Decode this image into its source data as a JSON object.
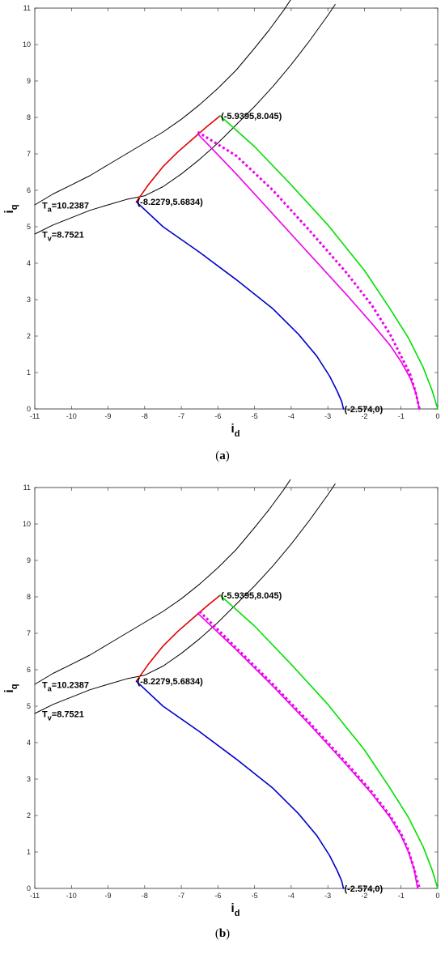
{
  "figures": [
    {
      "caption_open": "(",
      "caption_letter": "a",
      "caption_close": ")",
      "chart_data": {
        "type": "line",
        "xlabel": "i",
        "xlabel_sub": "d",
        "ylabel": "i",
        "ylabel_sub": "q",
        "xlim": [
          -11,
          0
        ],
        "ylim": [
          0,
          11
        ],
        "xticks": [
          -11,
          -10,
          -9,
          -8,
          -7,
          -6,
          -5,
          -4,
          -3,
          -2,
          -1,
          0
        ],
        "yticks": [
          0,
          1,
          2,
          3,
          4,
          5,
          6,
          7,
          8,
          9,
          10,
          11
        ],
        "grid": false,
        "annotations": [
          {
            "text": "(-5.9395,8.045)",
            "x": -5.9395,
            "y": 8.045
          },
          {
            "text": "(-8.2279,5.6834)",
            "x": -8.2279,
            "y": 5.6834
          },
          {
            "text": "(-2.574,0)",
            "x": -2.574,
            "y": 0
          },
          {
            "main": "T",
            "sub": "a",
            "rest": "=10.2387",
            "x": -10.8,
            "y": 5.5
          },
          {
            "main": "T",
            "sub": "v",
            "rest": "=8.7521",
            "x": -10.8,
            "y": 4.7
          }
        ],
        "series": [
          {
            "color": "#000000",
            "style": "solid",
            "x": [
              -11,
              -10.5,
              -10,
              -9.5,
              -9,
              -8.5,
              -8,
              -7.5,
              -7,
              -6.5,
              -6,
              -5.5,
              -5,
              -4.6,
              -4.2,
              -3.9
            ],
            "y": [
              5.6,
              5.9,
              6.15,
              6.4,
              6.7,
              7.0,
              7.3,
              7.6,
              7.95,
              8.35,
              8.8,
              9.3,
              9.9,
              10.4,
              10.95,
              11.4
            ]
          },
          {
            "color": "#000000",
            "style": "solid",
            "x": [
              -11,
              -10.5,
              -10,
              -9.5,
              -9,
              -8.5,
              -8,
              -7.5,
              -7,
              -6.5,
              -6,
              -5.5,
              -5,
              -4.5,
              -4,
              -3.5,
              -3,
              -2.8
            ],
            "y": [
              4.8,
              5.05,
              5.25,
              5.45,
              5.6,
              5.75,
              5.85,
              6.1,
              6.45,
              6.85,
              7.3,
              7.8,
              8.3,
              8.85,
              9.45,
              10.1,
              10.8,
              11.1
            ]
          },
          {
            "color": "#e00000",
            "style": "solid",
            "x": [
              -8.2279,
              -7.9,
              -7.5,
              -7.1,
              -6.7,
              -6.3,
              -5.9395
            ],
            "y": [
              5.6834,
              6.15,
              6.65,
              7.05,
              7.4,
              7.75,
              8.045
            ]
          },
          {
            "color": "#00e000",
            "style": "solid",
            "x": [
              -5.9395,
              -5.0,
              -4.0,
              -3.0,
              -2.0,
              -1.3,
              -0.8,
              -0.4,
              -0.15,
              0
            ],
            "y": [
              8.045,
              7.2,
              6.15,
              5.05,
              3.8,
              2.75,
              1.95,
              1.15,
              0.5,
              0
            ]
          },
          {
            "color": "#0000cc",
            "style": "solid",
            "x": [
              -8.2279,
              -7.5,
              -6.5,
              -5.5,
              -4.5,
              -3.8,
              -3.3,
              -2.95,
              -2.75,
              -2.62,
              -2.574
            ],
            "y": [
              5.6834,
              5.0,
              4.3,
              3.55,
              2.75,
              2.05,
              1.45,
              0.9,
              0.5,
              0.2,
              0
            ]
          },
          {
            "color": "#ee00ee",
            "style": "solid",
            "x": [
              -6.55,
              -5.5,
              -4.5,
              -3.5,
              -2.5,
              -1.8,
              -1.3,
              -1.0,
              -0.75,
              -0.6,
              -0.5
            ],
            "y": [
              7.55,
              6.45,
              5.35,
              4.25,
              3.15,
              2.35,
              1.75,
              1.3,
              0.85,
              0.45,
              0
            ]
          },
          {
            "color": "#ee00ee",
            "style": "dotted",
            "x": [
              -6.55,
              -5.5,
              -4.5,
              -3.5,
              -2.5,
              -1.8,
              -1.3,
              -1.0,
              -0.75,
              -0.6,
              -0.5
            ],
            "y": [
              7.6,
              6.95,
              6.0,
              4.9,
              3.75,
              2.85,
              2.05,
              1.45,
              0.95,
              0.45,
              0
            ]
          }
        ]
      }
    },
    {
      "caption_open": "(",
      "caption_letter": "b",
      "caption_close": ")",
      "chart_data": {
        "type": "line",
        "xlabel": "i",
        "xlabel_sub": "d",
        "ylabel": "i",
        "ylabel_sub": "q",
        "xlim": [
          -11,
          0
        ],
        "ylim": [
          0,
          11
        ],
        "xticks": [
          -11,
          -10,
          -9,
          -8,
          -7,
          -6,
          -5,
          -4,
          -3,
          -2,
          -1,
          0
        ],
        "yticks": [
          0,
          1,
          2,
          3,
          4,
          5,
          6,
          7,
          8,
          9,
          10,
          11
        ],
        "grid": false,
        "annotations": [
          {
            "text": "(-5.9395,8.045)",
            "x": -5.9395,
            "y": 8.045
          },
          {
            "text": "(-8.2279,5.6834)",
            "x": -8.2279,
            "y": 5.6834
          },
          {
            "text": "(-2.574,0)",
            "x": -2.574,
            "y": 0
          },
          {
            "main": "T",
            "sub": "a",
            "rest": "=10.2387",
            "x": -10.8,
            "y": 5.5
          },
          {
            "main": "T",
            "sub": "v",
            "rest": "=8.7521",
            "x": -10.8,
            "y": 4.7
          }
        ],
        "series": [
          {
            "color": "#000000",
            "style": "solid",
            "x": [
              -11,
              -10.5,
              -10,
              -9.5,
              -9,
              -8.5,
              -8,
              -7.5,
              -7,
              -6.5,
              -6,
              -5.5,
              -5,
              -4.6,
              -4.2,
              -3.9
            ],
            "y": [
              5.6,
              5.9,
              6.15,
              6.4,
              6.7,
              7.0,
              7.3,
              7.6,
              7.95,
              8.35,
              8.8,
              9.3,
              9.9,
              10.4,
              10.95,
              11.4
            ]
          },
          {
            "color": "#000000",
            "style": "solid",
            "x": [
              -11,
              -10.5,
              -10,
              -9.5,
              -9,
              -8.5,
              -8,
              -7.5,
              -7,
              -6.5,
              -6,
              -5.5,
              -5,
              -4.5,
              -4,
              -3.5,
              -3,
              -2.8
            ],
            "y": [
              4.8,
              5.05,
              5.25,
              5.45,
              5.6,
              5.75,
              5.85,
              6.1,
              6.45,
              6.85,
              7.3,
              7.8,
              8.3,
              8.85,
              9.45,
              10.1,
              10.8,
              11.1
            ]
          },
          {
            "color": "#e00000",
            "style": "solid",
            "x": [
              -8.2279,
              -7.9,
              -7.5,
              -7.1,
              -6.7,
              -6.3,
              -5.9395
            ],
            "y": [
              5.6834,
              6.15,
              6.65,
              7.05,
              7.4,
              7.75,
              8.045
            ]
          },
          {
            "color": "#00e000",
            "style": "solid",
            "x": [
              -5.9395,
              -5.0,
              -4.0,
              -3.0,
              -2.0,
              -1.3,
              -0.8,
              -0.4,
              -0.15,
              0
            ],
            "y": [
              8.045,
              7.2,
              6.15,
              5.05,
              3.8,
              2.75,
              1.95,
              1.15,
              0.5,
              0
            ]
          },
          {
            "color": "#0000cc",
            "style": "solid",
            "x": [
              -8.2279,
              -7.5,
              -6.5,
              -5.5,
              -4.5,
              -3.8,
              -3.3,
              -2.95,
              -2.75,
              -2.62,
              -2.574
            ],
            "y": [
              5.6834,
              5.0,
              4.3,
              3.55,
              2.75,
              2.05,
              1.45,
              0.9,
              0.5,
              0.2,
              0
            ]
          },
          {
            "color": "#ee00ee",
            "style": "solid",
            "x": [
              -6.55,
              -5.5,
              -4.5,
              -3.5,
              -2.5,
              -1.8,
              -1.3,
              -1.0,
              -0.8,
              -0.65,
              -0.55
            ],
            "y": [
              7.55,
              6.55,
              5.55,
              4.5,
              3.4,
              2.6,
              1.95,
              1.45,
              1.0,
              0.55,
              0
            ]
          },
          {
            "color": "#ee00ee",
            "style": "dotted",
            "x": [
              -6.5,
              -5.5,
              -4.5,
              -3.5,
              -2.5,
              -1.8,
              -1.3,
              -1.0,
              -0.8,
              -0.65,
              -0.5
            ],
            "y": [
              7.6,
              6.6,
              5.6,
              4.55,
              3.45,
              2.65,
              2.0,
              1.5,
              1.05,
              0.55,
              0
            ]
          }
        ]
      }
    }
  ]
}
